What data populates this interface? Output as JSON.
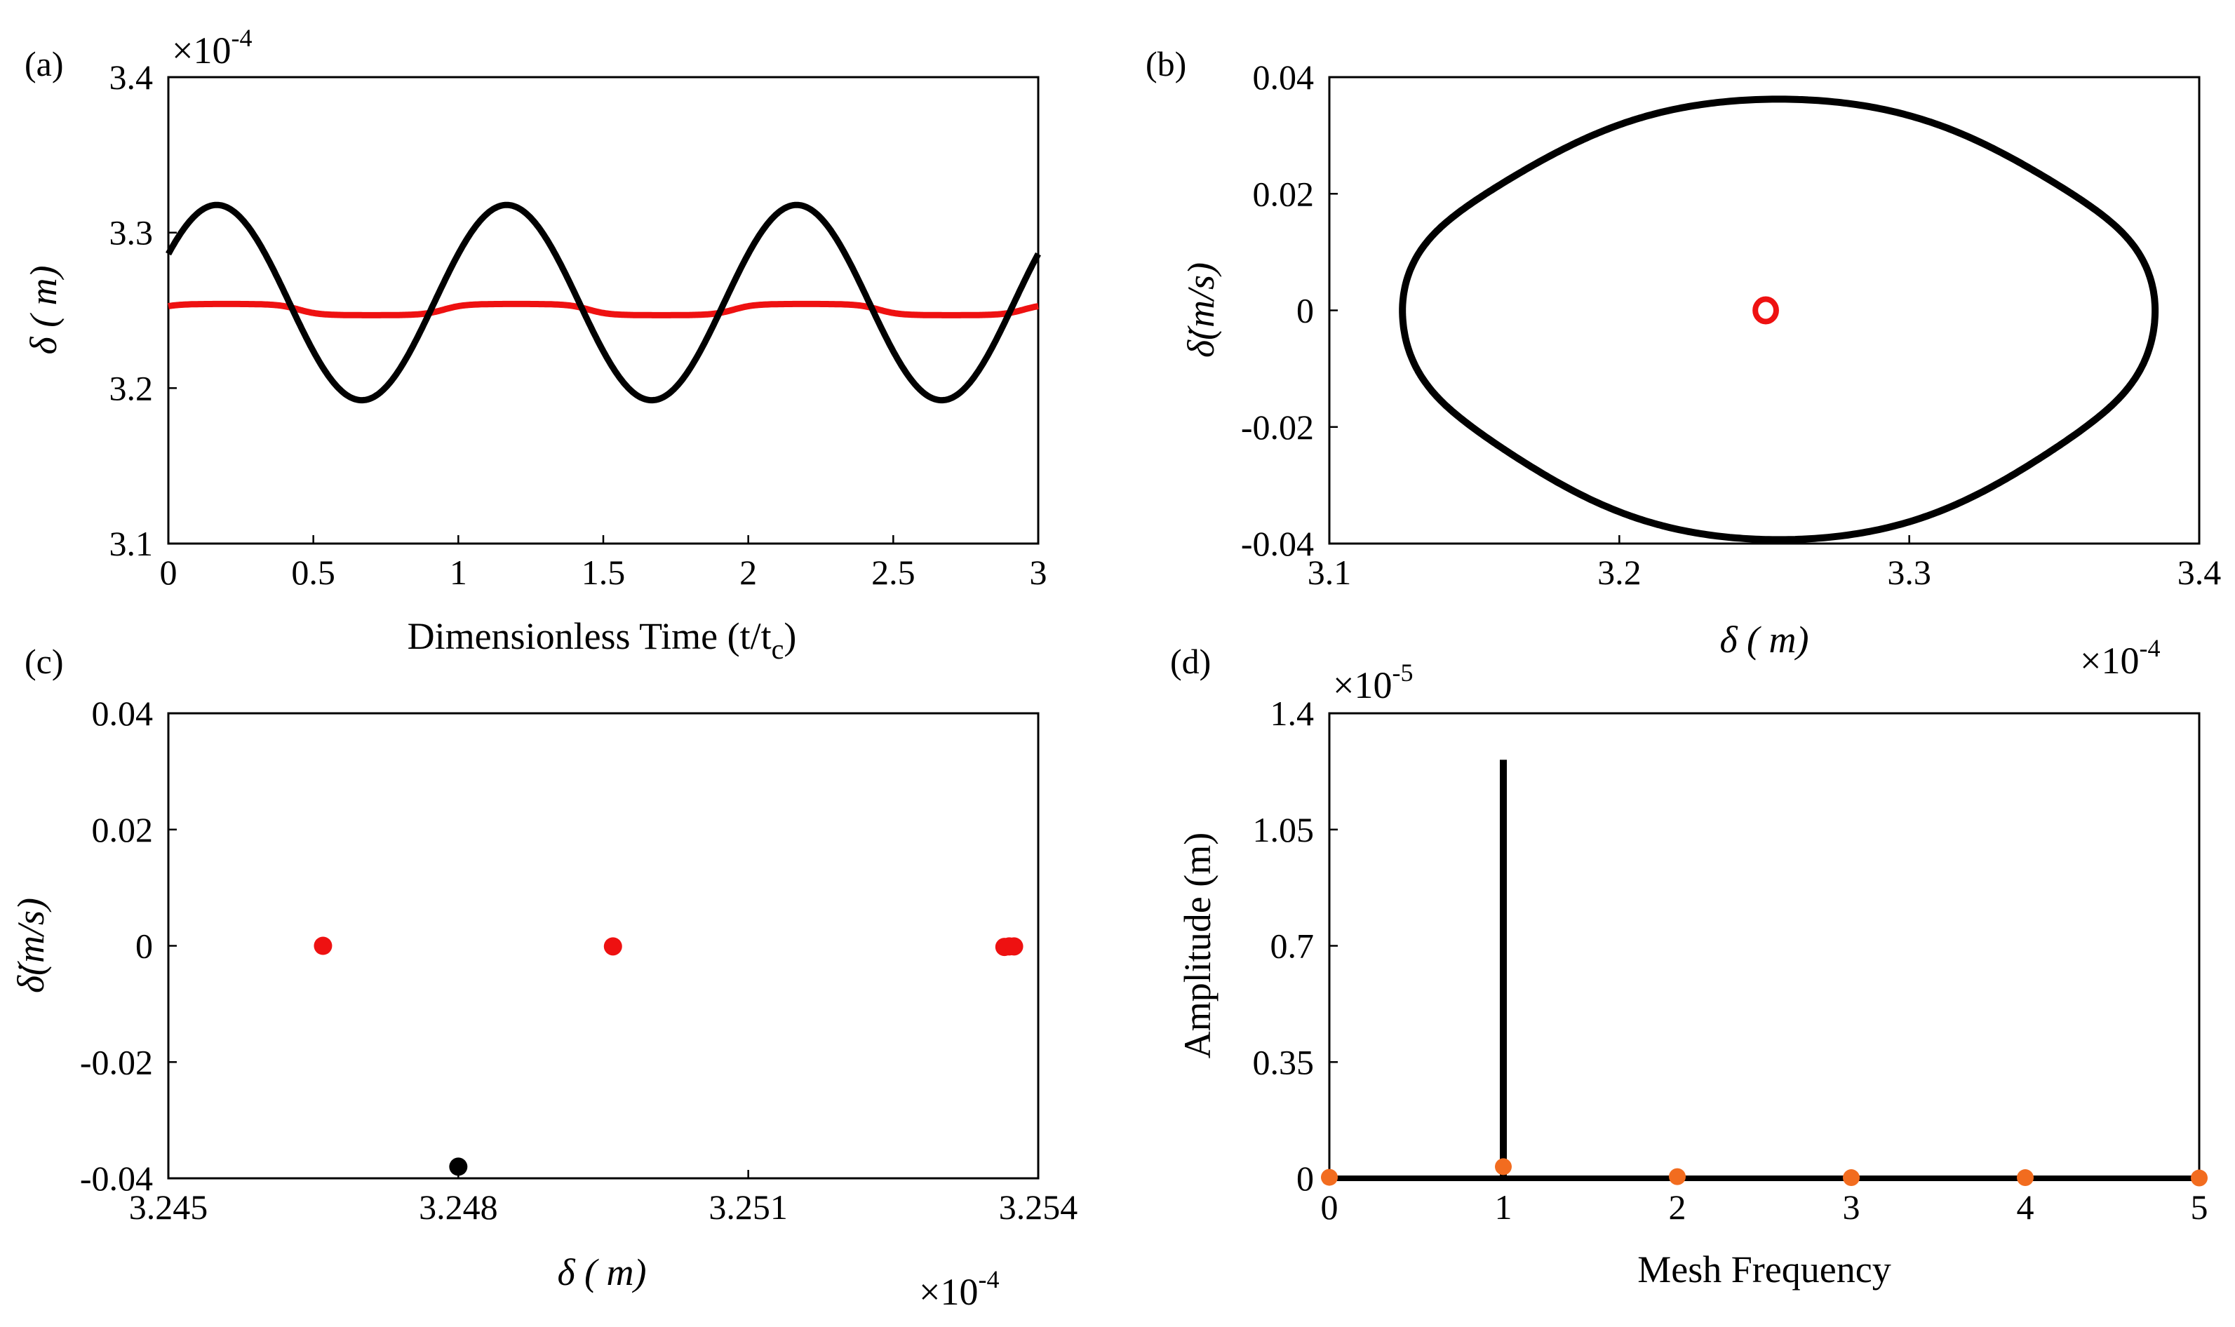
{
  "chart_data": [
    {
      "id": "a",
      "type": "line",
      "panel_label": "(a)",
      "xlabel": "Dimensionless Time (t/t",
      "xlabel_sub": "c",
      "xlabel_close": ")",
      "ylabel": "δ ( m)",
      "y_multiplier": "×10",
      "y_multiplier_exp": "-4",
      "xlim": [
        0,
        3
      ],
      "ylim": [
        3.1,
        3.4
      ],
      "xticks": [
        0,
        0.5,
        1,
        1.5,
        2,
        2.5,
        3
      ],
      "xtick_labels": [
        "0",
        "0.5",
        "1",
        "1.5",
        "2",
        "2.5",
        "3"
      ],
      "yticks": [
        3.1,
        3.2,
        3.3,
        3.4
      ],
      "ytick_labels": [
        "3.1",
        "3.2",
        "3.3",
        "3.4"
      ],
      "series": [
        {
          "name": "black",
          "color": "#000000",
          "mean": 3.255,
          "amplitude": 0.0628,
          "period": 1.0,
          "peak_t": 0.167
        },
        {
          "name": "red",
          "color": "#ee1111",
          "mean": 3.2505,
          "amplitude": 0.0036,
          "period": 1.0,
          "peak_t": 0.2
        }
      ]
    },
    {
      "id": "b",
      "type": "line",
      "panel_label": "(b)",
      "xlabel": "δ ( m)",
      "ylabel": "δ̇(m/s)",
      "x_multiplier": "×10",
      "x_multiplier_exp": "-4",
      "xlim": [
        3.1,
        3.4
      ],
      "ylim": [
        -0.04,
        0.04
      ],
      "xticks": [
        3.1,
        3.2,
        3.3,
        3.4
      ],
      "xtick_labels": [
        "3.1",
        "3.2",
        "3.3",
        "3.4"
      ],
      "yticks": [
        -0.04,
        -0.02,
        0,
        0.02,
        0.04
      ],
      "ytick_labels": [
        "-0.04",
        "-0.02",
        "0",
        "0.02",
        "0.04"
      ],
      "series": [
        {
          "name": "black orbit",
          "color": "#000000",
          "center_x": 3.255,
          "x_radius": 0.1285,
          "y_top": 0.035,
          "y_bottom": -0.038
        },
        {
          "name": "red orbit",
          "color": "#ee1111",
          "center_x": 3.2505,
          "x_radius": 0.0036,
          "y_radius": 0.0012
        }
      ]
    },
    {
      "id": "c",
      "type": "scatter",
      "panel_label": "(c)",
      "xlabel": "δ ( m)",
      "ylabel": "δ̇(m/s)",
      "x_multiplier": "×10",
      "x_multiplier_exp": "-4",
      "xlim": [
        3.245,
        3.254
      ],
      "ylim": [
        -0.04,
        0.04
      ],
      "xticks": [
        3.245,
        3.248,
        3.251,
        3.254
      ],
      "xtick_labels": [
        "3.245",
        "3.248",
        "3.251",
        "3.254"
      ],
      "yticks": [
        -0.04,
        -0.02,
        0,
        0.02,
        0.04
      ],
      "ytick_labels": [
        "-0.04",
        "-0.02",
        "0",
        "0.02",
        "0.04"
      ],
      "series": [
        {
          "name": "red",
          "color": "#ee1111",
          "points": [
            [
              3.2466,
              0
            ],
            [
              3.2496,
              -0.0001
            ],
            [
              3.25365,
              -0.0002
            ],
            [
              3.2537,
              -0.0001
            ],
            [
              3.25375,
              -0.0001
            ]
          ]
        },
        {
          "name": "black",
          "color": "#000000",
          "points": [
            [
              3.248,
              -0.038
            ]
          ]
        }
      ]
    },
    {
      "id": "d",
      "type": "line",
      "panel_label": "(d)",
      "xlabel": "Mesh Frequency",
      "ylabel": "Amplitude (m)",
      "y_multiplier": "×10",
      "y_multiplier_exp": "-5",
      "xlim": [
        0,
        5
      ],
      "ylim": [
        0,
        1.4
      ],
      "xticks": [
        0,
        1,
        2,
        3,
        4,
        5
      ],
      "xtick_labels": [
        "0",
        "1",
        "2",
        "3",
        "4",
        "5"
      ],
      "yticks": [
        0,
        0.35,
        0.7,
        1.05,
        1.4
      ],
      "ytick_labels": [
        "0",
        "0.35",
        "0.7",
        "1.05",
        "1.4"
      ],
      "series": [
        {
          "name": "black spectrum",
          "color": "#000000",
          "x": [
            0,
            1,
            2,
            3,
            4,
            5
          ],
          "values": [
            0,
            1.26,
            0.02,
            0,
            0,
            0
          ]
        },
        {
          "name": "orange spectrum",
          "color": "#f26c1f",
          "x": [
            0,
            1,
            2,
            3,
            4,
            5
          ],
          "values": [
            0.003,
            0.035,
            0.005,
            0.002,
            0.002,
            0.001
          ]
        }
      ]
    }
  ]
}
